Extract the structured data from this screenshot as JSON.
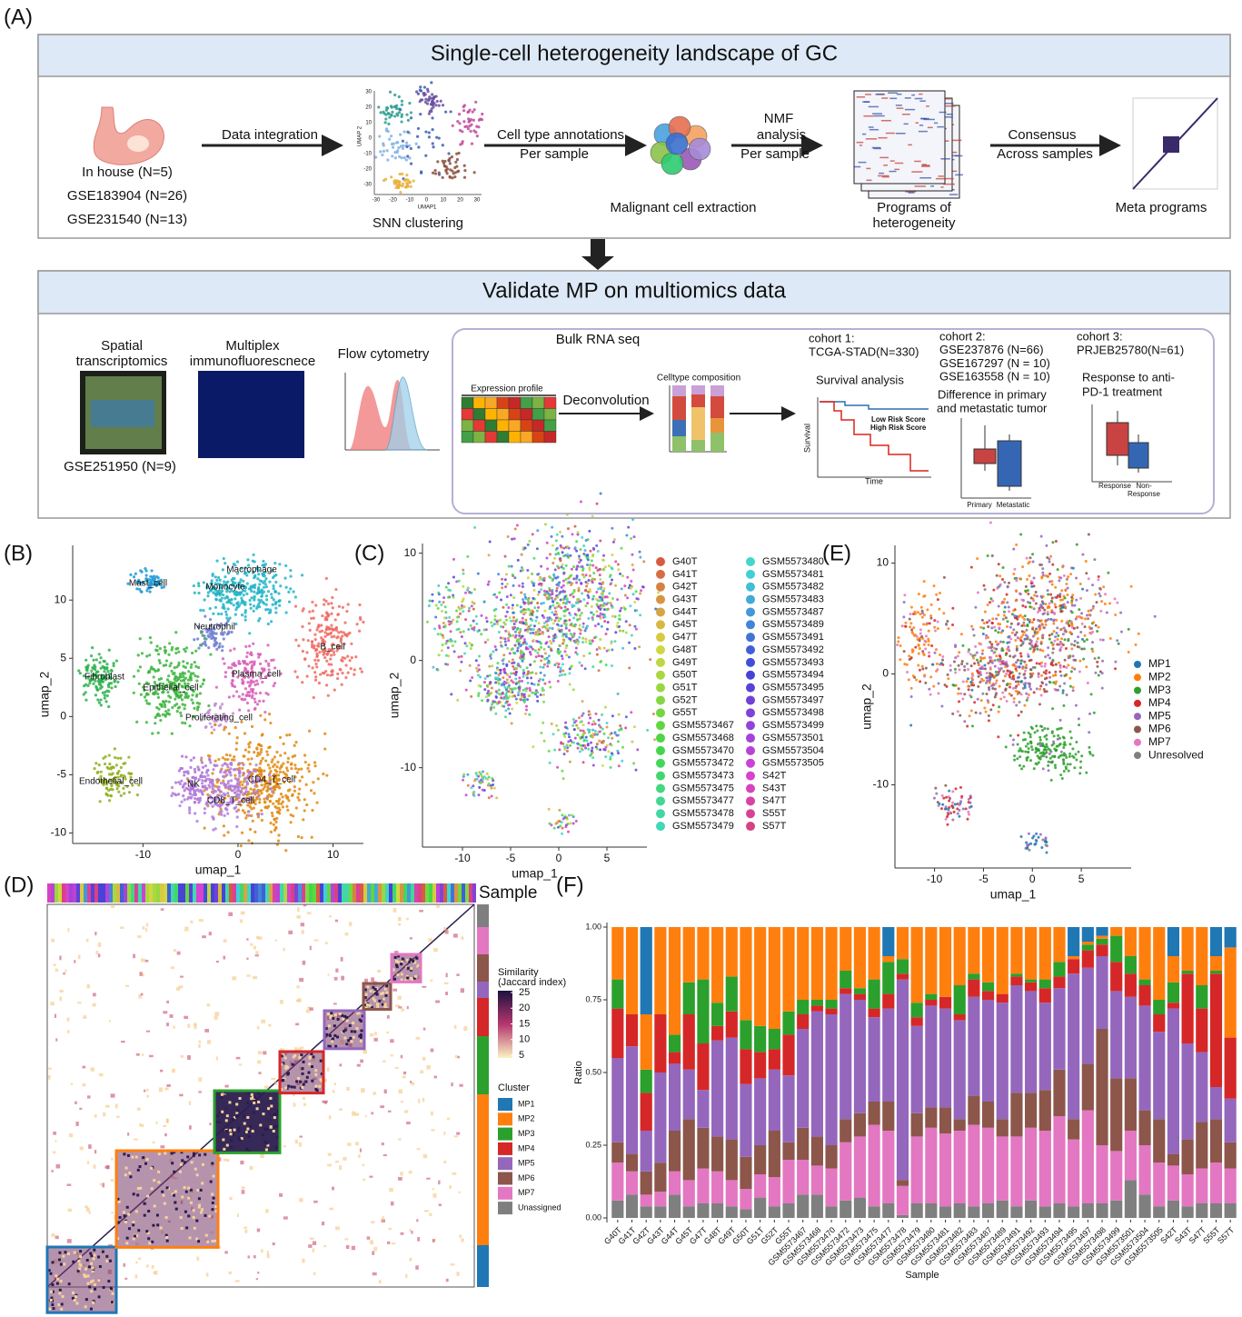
{
  "panel_a": {
    "label": "(A)",
    "title": "Single-cell heterogeneity landscape of GC",
    "sources": [
      "In house (N=5)",
      "GSE183904 (N=26)",
      "GSE231540 (N=13)"
    ],
    "step1": "Data integration",
    "mini_umap_x_label": "UMAP1",
    "mini_umap_y_label": "UMAP 2",
    "mini_umap_xticks": [
      -30,
      -20,
      -10,
      0,
      10,
      20,
      30
    ],
    "mini_umap_yticks": [
      30,
      20,
      10,
      0,
      -10,
      -20,
      -30
    ],
    "clustering": "SNN clustering",
    "step2": [
      "Cell type annotations",
      "Per sample"
    ],
    "extraction": "Malignant cell extraction",
    "step3": [
      "NMF",
      "analysis",
      "Per sample"
    ],
    "programs": [
      "Programs of",
      "heterogeneity"
    ],
    "step4": [
      "Consensus",
      "Across samples"
    ],
    "meta": "Meta programs",
    "validate_title": "Validate MP on multiomics data",
    "spatial": [
      "Spatial",
      "transcriptomics"
    ],
    "spatial_source": "GSE251950 (N=9)",
    "multiplex": [
      "Multiplex",
      "immunofluorescnece"
    ],
    "flow": "Flow cytometry",
    "bulk": "Bulk RNA seq",
    "expression": "Expression profile",
    "deconvolution": "Deconvolution",
    "composition": "Celltype composition",
    "cohort1": [
      "cohort 1:",
      "TCGA-STAD(N=330)"
    ],
    "survival_title": "Survival analysis",
    "low_risk": "Low Risk Score",
    "high_risk": "High Risk Score",
    "survival_y": "Survival",
    "survival_x": "Time",
    "cohort2": [
      "cohort 2:",
      "GSE237876 (N=66)",
      "GSE167297 (N = 10)",
      "GSE163558 (N = 10)"
    ],
    "difference": [
      "Difference in primary",
      "and metastatic tumor"
    ],
    "primary": "Primary",
    "metastatic": "Metastatic",
    "cohort3": [
      "cohort 3:",
      "PRJEB25780(N=61)"
    ],
    "response_title": [
      "Response to anti-",
      "PD-1 treatment"
    ],
    "response": "Response",
    "non_response": [
      "Non-",
      "Response"
    ]
  },
  "panel_b": {
    "label": "(B)",
    "cluster_labels": [
      "Mast_cell",
      "Macrophage",
      "Monocyte",
      "Neutrophil",
      "B_cell",
      "Fibroblast",
      "Epithelial_cell",
      "Plasma_cell",
      "Proliferating_cell",
      "Endothelial_cell",
      "NK",
      "CD4_T_cell",
      "CD8_T_cell"
    ],
    "x_label": "umap_1",
    "y_label": "umap_2",
    "xlim": [
      -17.4,
      13.2
    ],
    "ylim": [
      -10.9,
      14.7
    ],
    "xticks": [
      -10,
      0,
      10
    ],
    "yticks": [
      10,
      5,
      0,
      -5,
      -10
    ]
  },
  "panel_c": {
    "label": "(C)",
    "samples": [
      "G40T",
      "G41T",
      "G42T",
      "G43T",
      "G44T",
      "G45T",
      "G47T",
      "G48T",
      "G49T",
      "G50T",
      "G51T",
      "G52T",
      "G55T",
      "GSM5573467",
      "GSM5573468",
      "GSM5573470",
      "GSM5573472",
      "GSM5573473",
      "GSM5573475",
      "GSM5573477",
      "GSM5573478",
      "GSM5573479",
      "GSM5573480",
      "GSM5573481",
      "GSM5573482",
      "GSM5573483",
      "GSM5573487",
      "GSM5573489",
      "GSM5573491",
      "GSM5573492",
      "GSM5573493",
      "GSM5573494",
      "GSM5573495",
      "GSM5573497",
      "GSM5573498",
      "GSM5573499",
      "GSM5573501",
      "GSM5573504",
      "GSM5573505",
      "S42T",
      "S43T",
      "S47T",
      "S55T",
      "S57T"
    ],
    "x_label": "umap_1",
    "y_label": "umap_2",
    "xlim": [
      -14.15,
      9.15
    ],
    "ylim": [
      -17.4,
      10.9
    ],
    "xticks": [
      -10,
      -5,
      0,
      5
    ],
    "yticks": [
      10,
      0,
      -10
    ]
  },
  "panel_e": {
    "label": "(E)",
    "legend": [
      {
        "name": "MP1",
        "color": "#1f77b4"
      },
      {
        "name": "MP2",
        "color": "#ff7f0e"
      },
      {
        "name": "MP3",
        "color": "#2ca02c"
      },
      {
        "name": "MP4",
        "color": "#d62728"
      },
      {
        "name": "MP5",
        "color": "#9467bd"
      },
      {
        "name": "MP6",
        "color": "#8c564b"
      },
      {
        "name": "MP7",
        "color": "#e377c2"
      },
      {
        "name": "Unresolved",
        "color": "#7f7f7f"
      }
    ],
    "x_label": "umap_1",
    "y_label": "umap_2",
    "xlim": [
      -14.05,
      10.1
    ],
    "ylim": [
      -17.5,
      11.6
    ],
    "xticks": [
      -10,
      -5,
      0,
      5
    ],
    "yticks": [
      10,
      0,
      -10
    ]
  },
  "panel_d": {
    "label": "(D)",
    "sample_label": "Sample",
    "similarity_title": [
      "Similarity",
      "(Jaccard index)"
    ],
    "similarity_ticks": [
      25,
      20,
      15,
      10,
      5
    ],
    "cluster_title": "Cluster",
    "clusters": [
      {
        "name": "MP1",
        "color": "#1f77b4"
      },
      {
        "name": "MP2",
        "color": "#ff7f0e"
      },
      {
        "name": "MP3",
        "color": "#2ca02c"
      },
      {
        "name": "MP4",
        "color": "#d62728"
      },
      {
        "name": "MP5",
        "color": "#9467bd"
      },
      {
        "name": "MP6",
        "color": "#8c564b"
      },
      {
        "name": "MP7",
        "color": "#e377c2"
      },
      {
        "name": "Unassigned",
        "color": "#7f7f7f"
      }
    ]
  },
  "panel_f": {
    "label": "(F)"
  },
  "chart_data": {
    "type": "bar",
    "stacked": true,
    "x_label": "Sample",
    "y_label": "Ratio",
    "categories": [
      "G40T",
      "G41T",
      "G42T",
      "G43T",
      "G44T",
      "G45T",
      "G47T",
      "G48T",
      "G49T",
      "G50T",
      "G51T",
      "G52T",
      "G55T",
      "GSM5573467",
      "GSM5573468",
      "GSM5573470",
      "GSM5573472",
      "GSM5573473",
      "GSM5573475",
      "GSM5573477",
      "GSM5573478",
      "GSM5573479",
      "GSM5573480",
      "GSM5573481",
      "GSM5573482",
      "GSM5573483",
      "GSM5573487",
      "GSM5573489",
      "GSM5573491",
      "GSM5573492",
      "GSM5573493",
      "GSM5573494",
      "GSM5573495",
      "GSM5573497",
      "GSM5573498",
      "GSM5573499",
      "GSM5573501",
      "GSM5573504",
      "GSM5573505",
      "S42T",
      "S43T",
      "S47T",
      "S55T",
      "S57T"
    ],
    "series": [
      {
        "color": "#7f7f7f",
        "values": [
          0.06,
          0.08,
          0.04,
          0.04,
          0.08,
          0.04,
          0.05,
          0.05,
          0.04,
          0.03,
          0.07,
          0.04,
          0.05,
          0.08,
          0.08,
          0.04,
          0.06,
          0.07,
          0.04,
          0.05,
          0.01,
          0.05,
          0.05,
          0.04,
          0.05,
          0.04,
          0.05,
          0.06,
          0.04,
          0.06,
          0.04,
          0.05,
          0.04,
          0.05,
          0.05,
          0.06,
          0.13,
          0.08,
          0.04,
          0.06,
          0.04,
          0.05,
          0.05,
          0.05
        ]
      },
      {
        "color": "#e377c2",
        "values": [
          0.13,
          0.08,
          0.04,
          0.05,
          0.08,
          0.09,
          0.12,
          0.11,
          0.09,
          0.07,
          0.08,
          0.1,
          0.15,
          0.12,
          0.1,
          0.13,
          0.2,
          0.21,
          0.28,
          0.25,
          0.1,
          0.23,
          0.26,
          0.25,
          0.25,
          0.28,
          0.26,
          0.22,
          0.24,
          0.25,
          0.26,
          0.3,
          0.23,
          0.32,
          0.2,
          0.17,
          0.17,
          0.17,
          0.15,
          0.12,
          0.11,
          0.12,
          0.14,
          0.12
        ]
      },
      {
        "color": "#8c564b",
        "values": [
          0.07,
          0.06,
          0.08,
          0.1,
          0.14,
          0.21,
          0.14,
          0.12,
          0.14,
          0.11,
          0.1,
          0.16,
          0.06,
          0.11,
          0.1,
          0.08,
          0.08,
          0.08,
          0.08,
          0.1,
          0.02,
          0.08,
          0.07,
          0.09,
          0.04,
          0.1,
          0.09,
          0.06,
          0.15,
          0.12,
          0.14,
          0.16,
          0.07,
          0.16,
          0.4,
          0.25,
          0.18,
          0.12,
          0.15,
          0.04,
          0.12,
          0.16,
          0.15,
          0.09
        ]
      },
      {
        "color": "#9467bd",
        "values": [
          0.29,
          0.37,
          0.14,
          0.31,
          0.23,
          0.17,
          0.13,
          0.33,
          0.35,
          0.25,
          0.23,
          0.21,
          0.23,
          0.34,
          0.43,
          0.45,
          0.43,
          0.39,
          0.29,
          0.32,
          0.69,
          0.3,
          0.35,
          0.34,
          0.34,
          0.34,
          0.35,
          0.4,
          0.37,
          0.35,
          0.3,
          0.28,
          0.5,
          0.33,
          0.25,
          0.3,
          0.28,
          0.36,
          0.3,
          0.5,
          0.33,
          0.24,
          0.11,
          0.15
        ]
      },
      {
        "color": "#d62728",
        "values": [
          0.17,
          0.11,
          0.13,
          0.2,
          0.04,
          0.19,
          0.16,
          0.05,
          0.09,
          0.12,
          0.09,
          0.07,
          0.14,
          0.05,
          0.02,
          0.02,
          0.02,
          0.02,
          0.03,
          0.05,
          0.02,
          0.03,
          0.02,
          0.04,
          0.02,
          0.06,
          0.03,
          0.03,
          0.03,
          0.03,
          0.05,
          0.04,
          0.05,
          0.06,
          0.04,
          0.1,
          0.08,
          0.07,
          0.06,
          0.02,
          0.24,
          0.15,
          0.39,
          0.21
        ]
      },
      {
        "color": "#2ca02c",
        "values": [
          0.1,
          0,
          0.08,
          0,
          0.06,
          0.11,
          0.22,
          0.08,
          0.12,
          0.1,
          0.09,
          0.07,
          0.08,
          0.05,
          0.02,
          0.03,
          0.06,
          0.02,
          0.1,
          0.11,
          0.05,
          0.05,
          0.02,
          0,
          0.1,
          0.02,
          0.03,
          0,
          0.01,
          0.01,
          0.03,
          0.05,
          0,
          0.02,
          0.02,
          0.09,
          0.06,
          0.02,
          0.05,
          0.07,
          0.01,
          0.08,
          0.01,
          0
        ]
      },
      {
        "color": "#ff7f0e",
        "values": [
          0.18,
          0.3,
          0.19,
          0.3,
          0.37,
          0.19,
          0.18,
          0.26,
          0.17,
          0.32,
          0.34,
          0.35,
          0.29,
          0.25,
          0.25,
          0.25,
          0.15,
          0.21,
          0.18,
          0.02,
          0.11,
          0.26,
          0.23,
          0.24,
          0.2,
          0.16,
          0.19,
          0.23,
          0.16,
          0.18,
          0.18,
          0.12,
          0.01,
          0.01,
          0.01,
          0.03,
          0.1,
          0.18,
          0.25,
          0.09,
          0.15,
          0.2,
          0.05,
          0.31
        ]
      },
      {
        "color": "#1f77b4",
        "values": [
          0,
          0,
          0.3,
          0,
          0,
          0,
          0,
          0,
          0,
          0,
          0,
          0,
          0,
          0,
          0,
          0,
          0,
          0,
          0,
          0.1,
          0,
          0,
          0,
          0,
          0,
          0,
          0,
          0,
          0,
          0,
          0,
          0,
          0.1,
          0.05,
          0.03,
          0,
          0,
          0,
          0,
          0.1,
          0,
          0,
          0.1,
          0.07
        ]
      }
    ],
    "ylim": [
      0,
      1
    ],
    "yticks": [
      {
        "value": 0,
        "label": "0.00"
      },
      {
        "value": 0.25,
        "label": "0.25"
      },
      {
        "value": 0.5,
        "label": "0.50"
      },
      {
        "value": 0.75,
        "label": "0.75"
      },
      {
        "value": 1,
        "label": "1.00"
      }
    ]
  }
}
